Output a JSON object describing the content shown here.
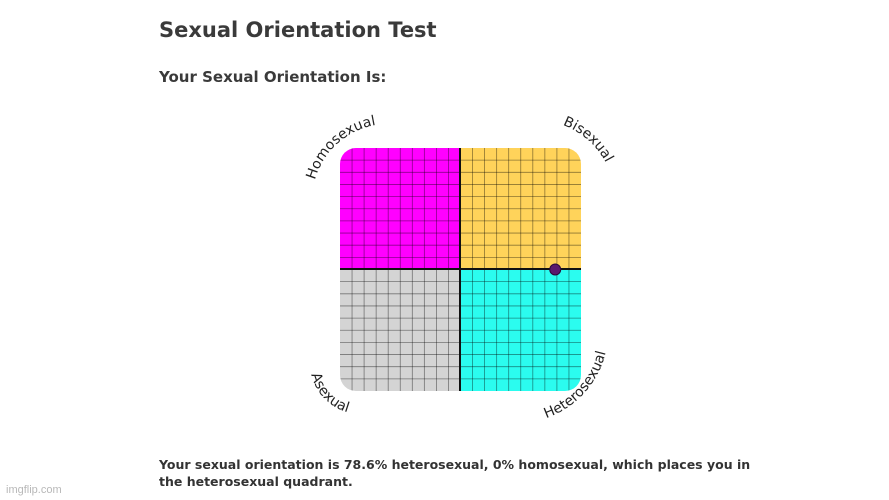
{
  "page": {
    "title": "Sexual Orientation Test",
    "subtitle": "Your Sexual Orientation Is:"
  },
  "chart_data": {
    "type": "scatter",
    "quadrants": [
      {
        "label": "Homosexual",
        "position": "top-left",
        "color": "#ff00ff"
      },
      {
        "label": "Bisexual",
        "position": "top-right",
        "color": "#ffd35a"
      },
      {
        "label": "Asexual",
        "position": "bottom-left",
        "color": "#d4d4d4"
      },
      {
        "label": "Heterosexual",
        "position": "bottom-right",
        "color": "#2bfcef"
      }
    ],
    "point": {
      "x": 78.6,
      "y": 0,
      "color": "#5a1a6e"
    },
    "xlim": [
      -100,
      100
    ],
    "ylim": [
      -100,
      100
    ],
    "grid": true
  },
  "result": {
    "text": "Your sexual orientation is 78.6% heterosexual, 0% homosexual, which places you in the heterosexual quadrant."
  },
  "watermark": "imgflip.com"
}
